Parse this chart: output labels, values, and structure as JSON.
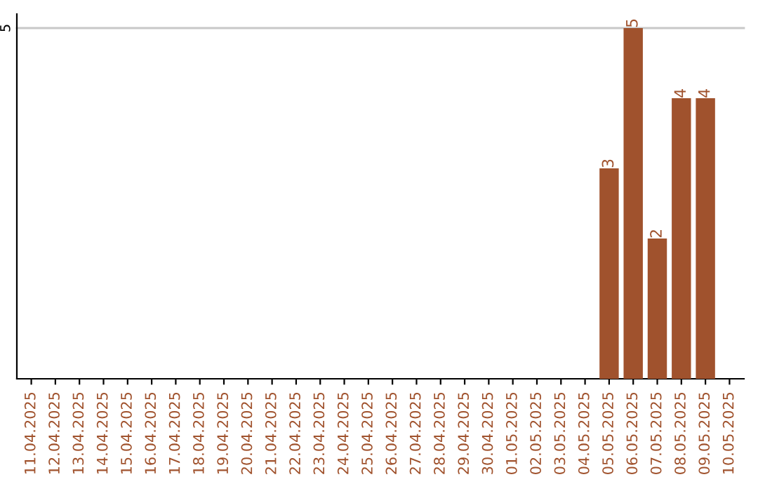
{
  "chart_data": {
    "type": "bar",
    "categories": [
      "11.04.2025",
      "12.04.2025",
      "13.04.2025",
      "14.04.2025",
      "15.04.2025",
      "16.04.2025",
      "17.04.2025",
      "18.04.2025",
      "19.04.2025",
      "20.04.2025",
      "21.04.2025",
      "22.04.2025",
      "23.04.2025",
      "24.04.2025",
      "25.04.2025",
      "26.04.2025",
      "27.04.2025",
      "28.04.2025",
      "29.04.2025",
      "30.04.2025",
      "01.05.2025",
      "02.05.2025",
      "03.05.2025",
      "04.05.2025",
      "05.05.2025",
      "06.05.2025",
      "07.05.2025",
      "08.05.2025",
      "09.05.2025",
      "10.05.2025"
    ],
    "values": [
      null,
      null,
      null,
      null,
      null,
      null,
      null,
      null,
      null,
      null,
      null,
      null,
      null,
      null,
      null,
      null,
      null,
      null,
      null,
      null,
      null,
      null,
      null,
      null,
      3,
      5,
      2,
      4,
      4,
      null
    ],
    "color": "#a0522d",
    "ylim": [
      0,
      5.2
    ],
    "yticks": [
      5
    ],
    "grid": "y",
    "data_labels": true
  }
}
